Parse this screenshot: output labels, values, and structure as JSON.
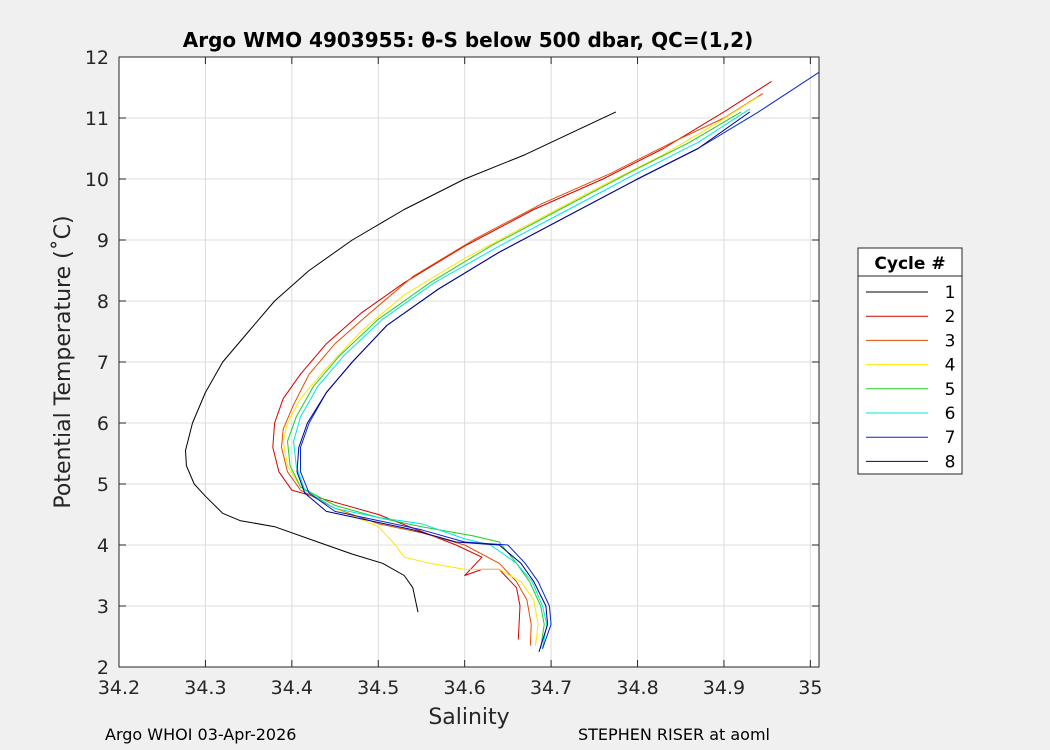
{
  "footer": {
    "left": "Argo WHOI 03-Apr-2026",
    "right": "STEPHEN RISER at aoml"
  },
  "chart_data": {
    "type": "line",
    "title": "Argo WMO 4903955: θ-S below 500 dbar,  QC=(1,2)",
    "xlabel": "Salinity",
    "ylabel": "Potential Temperature (˚C)",
    "xlim": [
      34.2,
      35.01
    ],
    "ylim": [
      2,
      12
    ],
    "xticks": [
      34.2,
      34.3,
      34.4,
      34.5,
      34.6,
      34.7,
      34.8,
      34.9,
      35
    ],
    "xtick_labels": [
      "34.2",
      "34.3",
      "34.4",
      "34.5",
      "34.6",
      "34.7",
      "34.8",
      "34.9",
      "35"
    ],
    "yticks": [
      2,
      3,
      4,
      5,
      6,
      7,
      8,
      9,
      10,
      11,
      12
    ],
    "ytick_labels": [
      "2",
      "3",
      "4",
      "5",
      "6",
      "7",
      "8",
      "9",
      "10",
      "11",
      "12"
    ],
    "grid": true,
    "legend": {
      "title": "Cycle #",
      "position": "right-outside"
    },
    "series": [
      {
        "name": "1",
        "color": "#000000",
        "x": [
          34.546,
          34.54,
          34.53,
          34.505,
          34.47,
          34.43,
          34.38,
          34.34,
          34.32,
          34.3,
          34.287,
          34.278,
          34.277,
          34.285,
          34.3,
          34.32,
          34.35,
          34.38,
          34.42,
          34.47,
          34.53,
          34.6,
          34.67,
          34.73,
          34.775
        ],
        "y": [
          2.9,
          3.3,
          3.5,
          3.7,
          3.85,
          4.05,
          4.3,
          4.4,
          4.52,
          4.8,
          5.0,
          5.3,
          5.55,
          6.0,
          6.5,
          7.0,
          7.5,
          8.0,
          8.5,
          9.0,
          9.5,
          10.0,
          10.4,
          10.8,
          11.1
        ]
      },
      {
        "name": "2",
        "color": "#d40000",
        "x": [
          34.662,
          34.664,
          34.66,
          34.64,
          34.62,
          34.6,
          34.62,
          34.59,
          34.5,
          34.45,
          34.4,
          34.385,
          34.378,
          34.38,
          34.39,
          34.41,
          34.44,
          34.48,
          34.53,
          34.6,
          34.68,
          34.76,
          34.83,
          34.9,
          34.955
        ],
        "y": [
          2.45,
          3.0,
          3.3,
          3.6,
          3.6,
          3.5,
          3.8,
          4.0,
          4.5,
          4.7,
          4.9,
          5.2,
          5.6,
          6.0,
          6.4,
          6.8,
          7.3,
          7.8,
          8.3,
          8.9,
          9.5,
          10.0,
          10.5,
          11.1,
          11.6
        ]
      },
      {
        "name": "3",
        "color": "#e64b00",
        "x": [
          34.676,
          34.677,
          34.672,
          34.66,
          34.64,
          34.6,
          34.55,
          34.5,
          34.45,
          34.41,
          34.395,
          34.388,
          34.39,
          34.402,
          34.42,
          34.45,
          34.49,
          34.54,
          34.61,
          34.69,
          34.77,
          34.84,
          34.9,
          34.945
        ],
        "y": [
          2.35,
          2.7,
          3.1,
          3.4,
          3.7,
          4.0,
          4.2,
          4.35,
          4.6,
          4.9,
          5.2,
          5.6,
          5.9,
          6.3,
          6.8,
          7.3,
          7.8,
          8.4,
          9.0,
          9.6,
          10.1,
          10.6,
          11.0,
          11.4
        ]
      },
      {
        "name": "4",
        "color": "#ffe600",
        "x": [
          34.682,
          34.685,
          34.68,
          34.665,
          34.64,
          34.6,
          34.56,
          34.53,
          34.52,
          34.5,
          34.45,
          34.41,
          34.395,
          34.39,
          34.395,
          34.41,
          34.44,
          34.48,
          34.53,
          34.6,
          34.68,
          34.76,
          34.83,
          34.89,
          34.94
        ],
        "y": [
          2.35,
          2.7,
          3.1,
          3.4,
          3.6,
          3.6,
          3.7,
          3.8,
          4.0,
          4.3,
          4.6,
          4.95,
          5.3,
          5.7,
          6.0,
          6.4,
          6.9,
          7.5,
          8.1,
          8.7,
          9.3,
          9.9,
          10.4,
          10.9,
          11.35
        ]
      },
      {
        "name": "5",
        "color": "#22cc22",
        "x": [
          34.688,
          34.692,
          34.688,
          34.675,
          34.66,
          34.64,
          34.61,
          34.55,
          34.5,
          34.45,
          34.41,
          34.398,
          34.395,
          34.405,
          34.425,
          34.455,
          34.5,
          34.56,
          34.63,
          34.71,
          34.79,
          34.86,
          34.92
        ],
        "y": [
          2.3,
          2.7,
          3.0,
          3.4,
          3.7,
          4.05,
          4.15,
          4.3,
          4.45,
          4.65,
          4.95,
          5.3,
          5.7,
          6.1,
          6.6,
          7.1,
          7.7,
          8.3,
          8.9,
          9.5,
          10.1,
          10.6,
          11.1
        ]
      },
      {
        "name": "6",
        "color": "#00e5e5",
        "x": [
          34.69,
          34.695,
          34.69,
          34.678,
          34.66,
          34.63,
          34.6,
          34.55,
          34.5,
          34.45,
          34.415,
          34.405,
          34.402,
          34.41,
          34.43,
          34.46,
          34.505,
          34.565,
          34.64,
          34.72,
          34.8,
          34.87,
          34.93
        ],
        "y": [
          2.3,
          2.7,
          3.0,
          3.4,
          3.7,
          4.0,
          4.1,
          4.35,
          4.45,
          4.6,
          4.9,
          5.3,
          5.7,
          6.1,
          6.6,
          7.1,
          7.7,
          8.3,
          8.9,
          9.5,
          10.1,
          10.6,
          11.15
        ]
      },
      {
        "name": "7",
        "color": "#0028d4",
        "x": [
          34.69,
          34.7,
          34.698,
          34.685,
          34.67,
          34.65,
          34.6,
          34.55,
          34.5,
          34.45,
          34.42,
          34.41,
          34.41,
          34.42,
          34.44,
          34.47,
          34.51,
          34.57,
          34.64,
          34.72,
          34.8,
          34.87,
          34.94,
          35.01
        ],
        "y": [
          2.3,
          2.7,
          3.0,
          3.4,
          3.7,
          4.0,
          4.05,
          4.25,
          4.4,
          4.55,
          4.85,
          5.2,
          5.6,
          6.0,
          6.5,
          7.0,
          7.6,
          8.2,
          8.8,
          9.4,
          10.0,
          10.5,
          11.1,
          11.75
        ]
      },
      {
        "name": "8",
        "color": "#00008b",
        "x": [
          34.686,
          34.696,
          34.694,
          34.68,
          34.665,
          34.64,
          34.59,
          34.54,
          34.49,
          34.44,
          34.415,
          34.406,
          34.408,
          34.418,
          34.44,
          34.47,
          34.51,
          34.57,
          34.64,
          34.72,
          34.8,
          34.87,
          34.93
        ],
        "y": [
          2.25,
          2.7,
          3.0,
          3.4,
          3.7,
          4.0,
          4.05,
          4.25,
          4.4,
          4.55,
          4.85,
          5.2,
          5.6,
          6.0,
          6.5,
          7.0,
          7.6,
          8.2,
          8.8,
          9.4,
          10.0,
          10.5,
          11.1
        ]
      }
    ]
  }
}
